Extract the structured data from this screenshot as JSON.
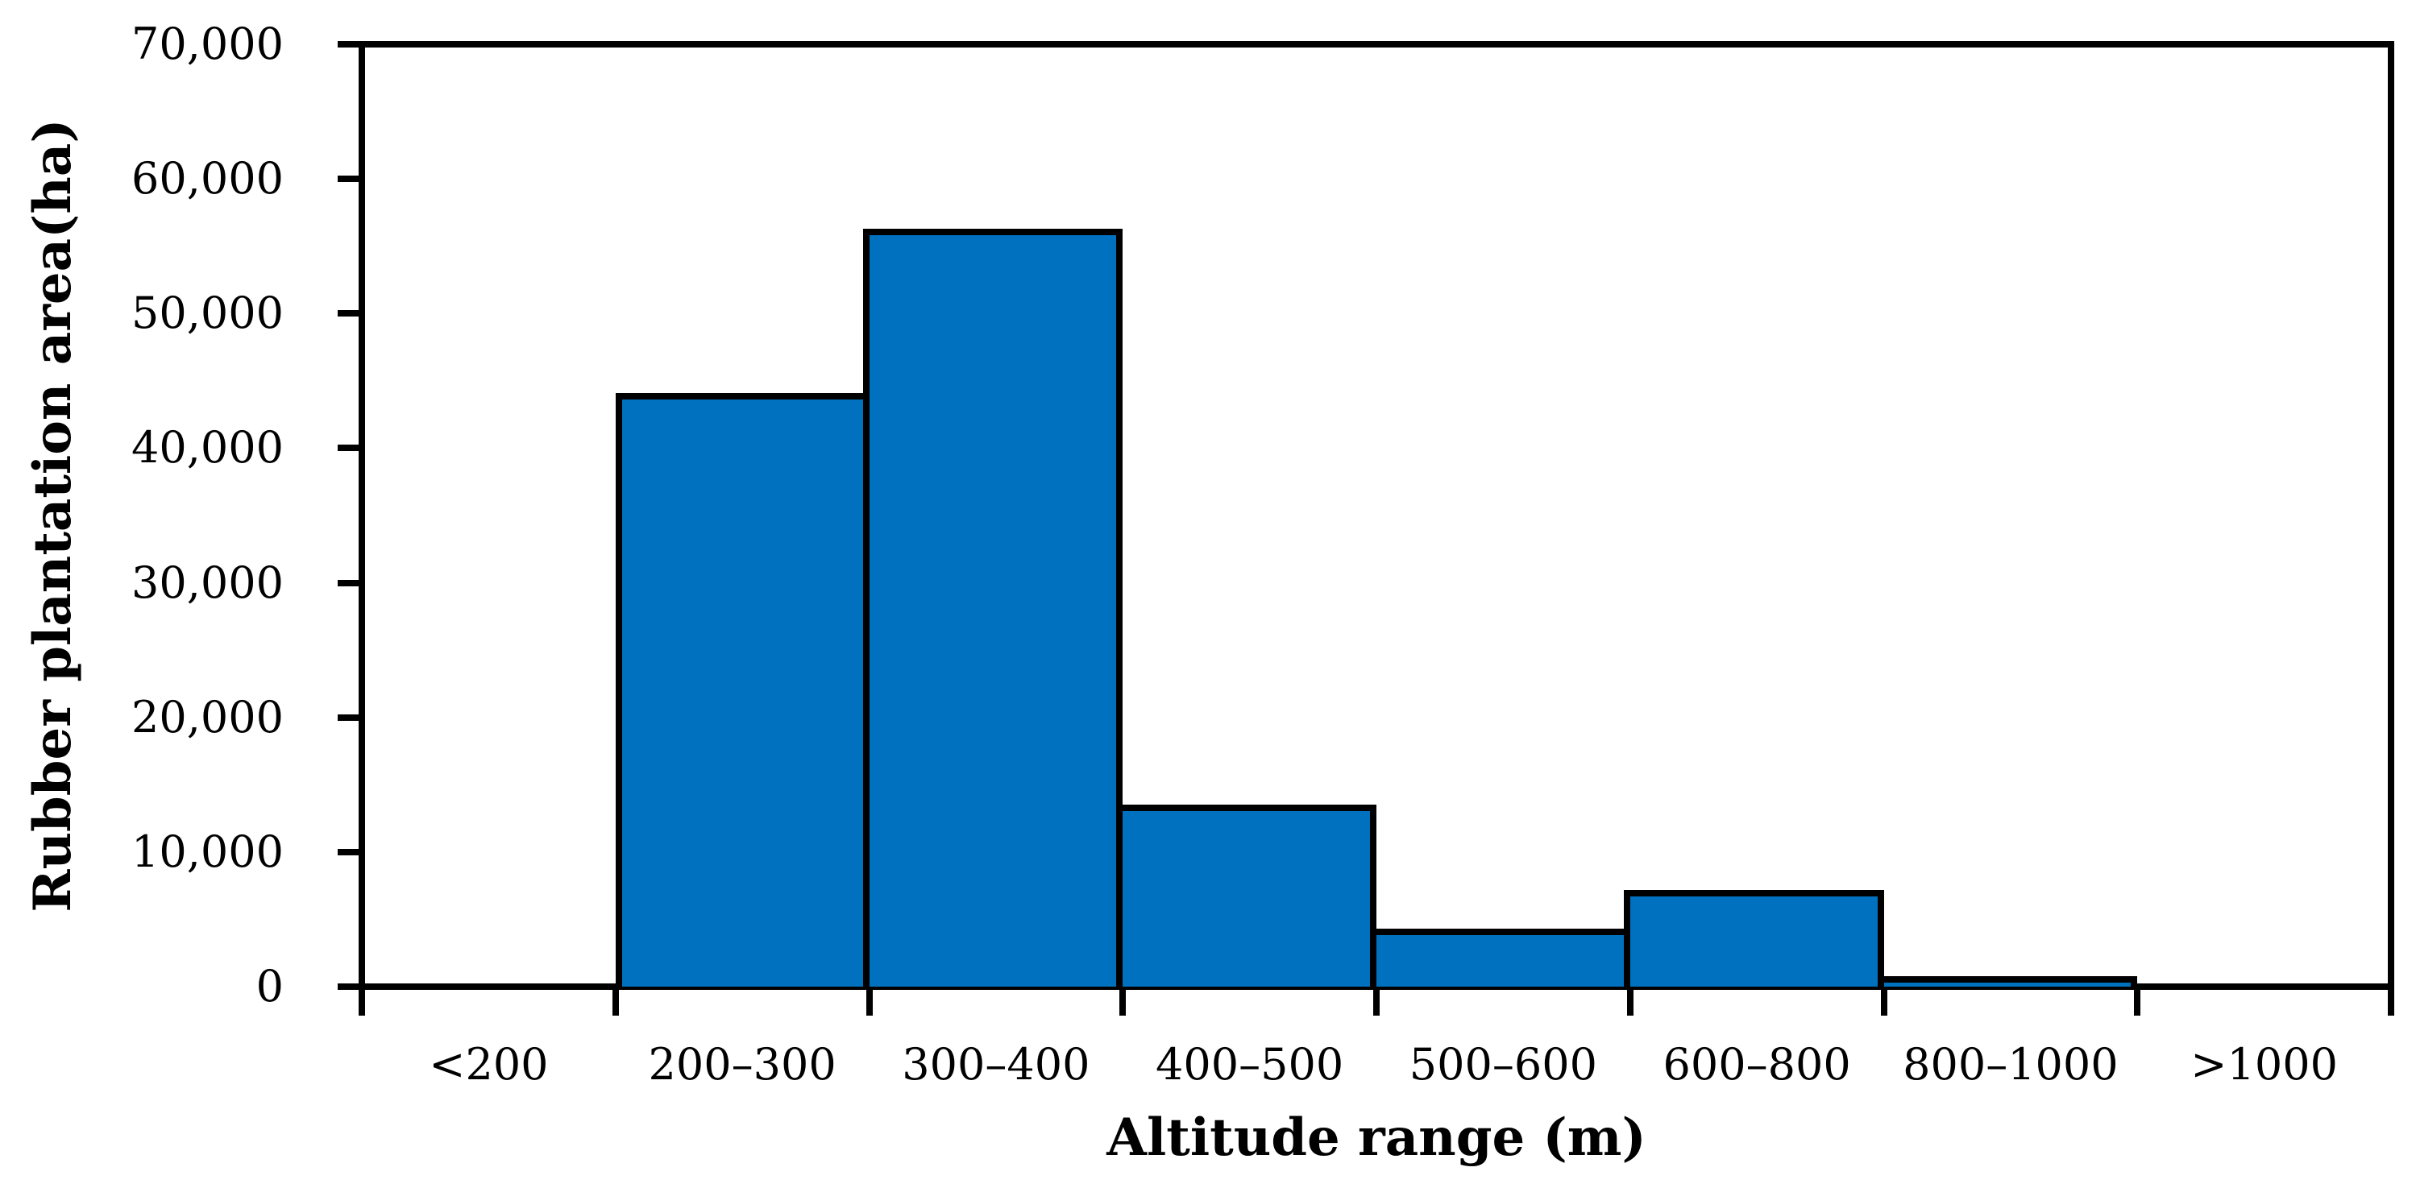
{
  "chart_data": {
    "type": "bar",
    "title": "",
    "categories": [
      "<200",
      "200–300",
      "300–400",
      "400–500",
      "500–600",
      "600–800",
      "800–1000",
      ">1000"
    ],
    "values": [
      0,
      44100,
      56300,
      13500,
      4300,
      7200,
      800,
      0
    ],
    "xlabel": "Altitude range (m)",
    "ylabel": "Rubber plantation area(ha)",
    "ylim": [
      0,
      70000
    ],
    "ytick_step": 10000,
    "ytick_labels_bottom_up": [
      "0",
      "10,000",
      "20,000",
      "30,000",
      "40,000",
      "50,000",
      "60,000",
      "70,000"
    ],
    "grid": false,
    "legend": "none",
    "bar_color": "#0071BE",
    "bar_border_color": "#000000",
    "axis_color": "#000000",
    "background_color": "#FFFFFF"
  }
}
